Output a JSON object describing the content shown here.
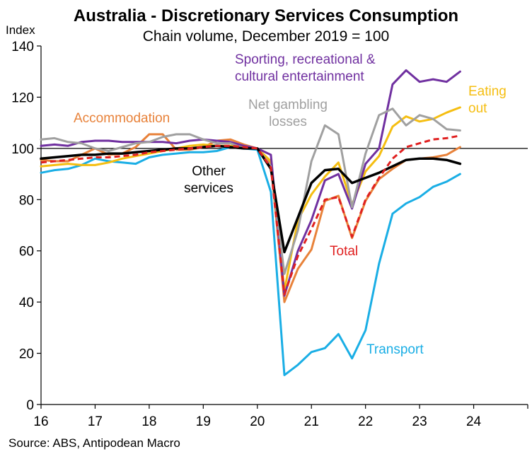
{
  "chart_data": {
    "type": "line",
    "title": "Australia - Discretionary Services Consumption",
    "subtitle": "Chain volume, December 2019 = 100",
    "ylabel": "Index",
    "source": "Source: ABS, Antipodean Macro",
    "ylim": [
      0,
      140
    ],
    "yticks": [
      0,
      20,
      40,
      60,
      80,
      100,
      120,
      140
    ],
    "xlim": [
      2016,
      2025
    ],
    "xtick_labels": [
      "16",
      "17",
      "18",
      "19",
      "20",
      "21",
      "22",
      "23",
      "24"
    ],
    "reference_line": 100,
    "x": [
      2016.0,
      2016.25,
      2016.5,
      2016.75,
      2017.0,
      2017.25,
      2017.5,
      2017.75,
      2018.0,
      2018.25,
      2018.5,
      2018.75,
      2019.0,
      2019.25,
      2019.5,
      2019.75,
      2020.0,
      2020.25,
      2020.5,
      2020.75,
      2021.0,
      2021.25,
      2021.5,
      2021.75,
      2022.0,
      2022.25,
      2022.5,
      2022.75,
      2023.0,
      2023.25,
      2023.5,
      2023.75
    ],
    "series": [
      {
        "name": "Transport",
        "color": "#1aaee5",
        "dashed": false,
        "width": 3,
        "values": [
          90.5,
          91.5,
          92.0,
          93.5,
          96.0,
          95.0,
          94.5,
          94.0,
          96.5,
          97.5,
          98.0,
          98.5,
          98.5,
          99.0,
          100.5,
          100.0,
          99.5,
          83.0,
          11.5,
          15.5,
          20.5,
          22.0,
          27.5,
          18.0,
          29.0,
          55.0,
          74.5,
          78.5,
          81.0,
          85.0,
          87.0,
          90.0
        ]
      },
      {
        "name": "Accommodation",
        "color": "#e8823a",
        "dashed": false,
        "width": 3,
        "values": [
          95.5,
          95.0,
          95.0,
          97.5,
          100.0,
          97.5,
          98.0,
          100.5,
          105.5,
          105.5,
          99.5,
          99.5,
          100.5,
          103.0,
          103.5,
          101.5,
          100.0,
          94.0,
          40.0,
          53.0,
          60.5,
          79.5,
          81.5,
          65.0,
          79.5,
          88.0,
          92.0,
          95.5,
          96.0,
          96.5,
          97.5,
          100.5
        ]
      },
      {
        "name": "Eating out",
        "color": "#f5be11",
        "dashed": false,
        "width": 3,
        "values": [
          93.0,
          93.5,
          94.0,
          93.5,
          93.5,
          94.5,
          96.0,
          97.0,
          98.0,
          99.0,
          100.0,
          101.0,
          101.5,
          101.0,
          101.0,
          100.5,
          100.0,
          95.0,
          44.5,
          72.0,
          82.0,
          89.0,
          94.5,
          78.0,
          91.0,
          97.0,
          108.5,
          112.5,
          110.5,
          111.5,
          114.0,
          116.0
        ]
      },
      {
        "name": "Sporting, recreational & cultural entertainment",
        "color": "#7030a0",
        "dashed": false,
        "width": 3,
        "values": [
          101.0,
          101.5,
          101.0,
          102.5,
          103.0,
          103.0,
          102.5,
          102.5,
          102.5,
          102.5,
          102.0,
          103.0,
          103.5,
          103.0,
          102.5,
          101.0,
          100.0,
          97.5,
          42.5,
          60.0,
          72.0,
          87.5,
          90.0,
          76.5,
          94.0,
          100.0,
          125.0,
          130.5,
          126.0,
          127.0,
          126.0,
          130.0
        ]
      },
      {
        "name": "Net gambling losses",
        "color": "#a0a0a0",
        "dashed": false,
        "width": 3,
        "values": [
          103.5,
          104.0,
          102.5,
          102.0,
          100.0,
          99.0,
          100.5,
          102.0,
          102.5,
          104.5,
          105.5,
          105.5,
          103.5,
          102.0,
          102.0,
          100.0,
          100.0,
          93.0,
          51.0,
          68.0,
          95.0,
          109.0,
          105.5,
          77.0,
          98.0,
          113.0,
          115.5,
          109.0,
          113.0,
          111.5,
          107.5,
          107.0
        ]
      },
      {
        "name": "Other services",
        "color": "#000000",
        "dashed": false,
        "width": 3.5,
        "values": [
          96.0,
          96.5,
          97.0,
          97.5,
          97.5,
          98.0,
          98.0,
          98.5,
          99.0,
          99.5,
          100.0,
          100.0,
          100.5,
          101.0,
          100.5,
          100.0,
          100.0,
          92.0,
          59.5,
          73.0,
          86.5,
          91.5,
          92.0,
          86.5,
          88.5,
          90.5,
          93.0,
          95.5,
          96.0,
          96.0,
          95.5,
          94.0
        ]
      },
      {
        "name": "Total",
        "color": "#e02020",
        "dashed": true,
        "width": 3,
        "values": [
          94.5,
          95.0,
          95.5,
          96.0,
          96.5,
          96.5,
          97.0,
          97.5,
          98.5,
          99.0,
          99.5,
          100.0,
          100.5,
          101.0,
          101.0,
          100.5,
          100.0,
          92.5,
          43.0,
          58.0,
          68.5,
          80.0,
          81.0,
          65.5,
          80.0,
          88.5,
          96.0,
          100.5,
          102.0,
          103.5,
          104.0,
          105.0
        ]
      }
    ],
    "series_labels": [
      {
        "lines": [
          "Sporting, recreational &",
          "cultural entertainment"
        ],
        "color": "#7030a0"
      },
      {
        "lines": [
          "Eating",
          "out"
        ],
        "color": "#f5be11"
      },
      {
        "lines": [
          "Net gambling",
          "losses"
        ],
        "color": "#a0a0a0"
      },
      {
        "lines": [
          "Accommodation"
        ],
        "color": "#e8823a"
      },
      {
        "lines": [
          "Other",
          "services"
        ],
        "color": "#000000"
      },
      {
        "lines": [
          "Total"
        ],
        "color": "#e02020"
      },
      {
        "lines": [
          "Transport"
        ],
        "color": "#1aaee5"
      }
    ],
    "grid": false,
    "legend": "inline labels"
  }
}
